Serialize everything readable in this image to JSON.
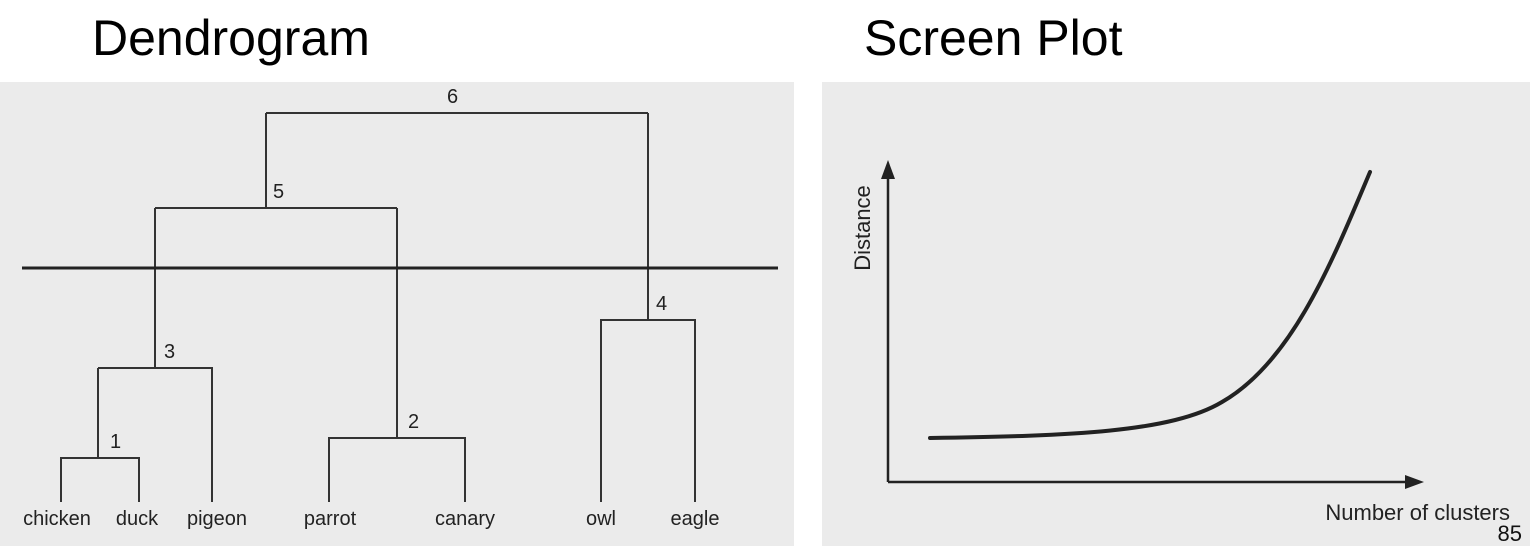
{
  "titles": {
    "left": "Dendrogram",
    "right": "Screen Plot"
  },
  "dendrogram": {
    "leaves": [
      "chicken",
      "duck",
      "pigeon",
      "parrot",
      "canary",
      "owl",
      "eagle"
    ],
    "merges": [
      {
        "step": "1",
        "joins": [
          "chicken",
          "duck"
        ]
      },
      {
        "step": "2",
        "joins": [
          "parrot",
          "canary"
        ]
      },
      {
        "step": "3",
        "joins": [
          "1",
          "pigeon"
        ]
      },
      {
        "step": "4",
        "joins": [
          "owl",
          "eagle"
        ]
      },
      {
        "step": "5",
        "joins": [
          "3",
          "2"
        ]
      },
      {
        "step": "6",
        "joins": [
          "5",
          "4"
        ]
      }
    ],
    "cut_line": true
  },
  "scree_plot": {
    "xlabel": "Number of clusters",
    "ylabel": "Distance",
    "curve": "flat then rising steeply (elbow)"
  },
  "page_number": "85"
}
